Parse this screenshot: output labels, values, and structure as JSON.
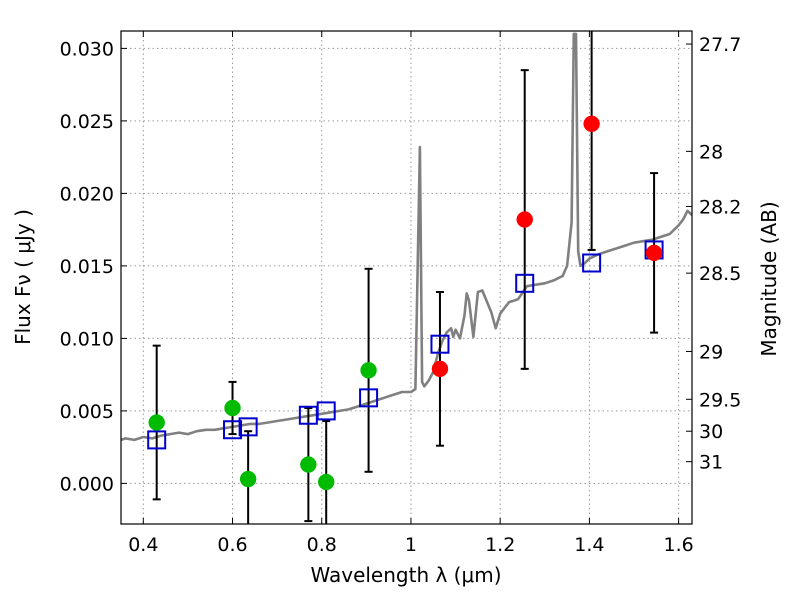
{
  "chart_data": {
    "type": "scatter",
    "xlabel": "Wavelength  λ (μm)",
    "ylabel": "Flux  Fν  ( μJy )",
    "y2label": "Magnitude (AB)",
    "xlim": [
      0.35,
      1.63
    ],
    "ylim": [
      -0.0028,
      0.0312
    ],
    "grid": true,
    "x_ticks": [
      0.4,
      0.6,
      0.8,
      1.0,
      1.2,
      1.4,
      1.6
    ],
    "x_tick_labels": [
      "0.4",
      "0.6",
      "0.8",
      "1",
      "1.2",
      "1.4",
      "1.6"
    ],
    "y_ticks": [
      0.0,
      0.005,
      0.01,
      0.015,
      0.02,
      0.025,
      0.03
    ],
    "y_tick_labels": [
      "0.000",
      "0.005",
      "0.010",
      "0.015",
      "0.020",
      "0.025",
      "0.030"
    ],
    "y2_ticks": [
      {
        "label": "27.7",
        "flux": 0.0303
      },
      {
        "label": "28",
        "flux": 0.0229
      },
      {
        "label": "28.2",
        "flux": 0.0191
      },
      {
        "label": "28.5",
        "flux": 0.0145
      },
      {
        "label": "29",
        "flux": 0.0091
      },
      {
        "label": "29.5",
        "flux": 0.0058
      },
      {
        "label": "30",
        "flux": 0.0036
      },
      {
        "label": "31",
        "flux": 0.0015
      }
    ],
    "colors": {
      "model": "#808080",
      "fit": "#0000cc",
      "detected": "#ff0000",
      "undetected": "#00bb00",
      "errorbar": "#000000",
      "grid": "#999999"
    },
    "model_spectrum": {
      "x": [
        0.35,
        0.36,
        0.38,
        0.4,
        0.42,
        0.44,
        0.46,
        0.48,
        0.5,
        0.52,
        0.54,
        0.56,
        0.58,
        0.6,
        0.62,
        0.64,
        0.66,
        0.68,
        0.7,
        0.72,
        0.74,
        0.76,
        0.78,
        0.8,
        0.82,
        0.84,
        0.86,
        0.88,
        0.9,
        0.92,
        0.94,
        0.96,
        0.98,
        1.0,
        1.01,
        1.02,
        1.025,
        1.03,
        1.04,
        1.05,
        1.06,
        1.07,
        1.08,
        1.09,
        1.095,
        1.1,
        1.11,
        1.12,
        1.125,
        1.13,
        1.14,
        1.15,
        1.16,
        1.18,
        1.19,
        1.2,
        1.21,
        1.22,
        1.23,
        1.24,
        1.26,
        1.28,
        1.3,
        1.32,
        1.34,
        1.35,
        1.36,
        1.365,
        1.37,
        1.375,
        1.38,
        1.39,
        1.4,
        1.42,
        1.44,
        1.46,
        1.48,
        1.5,
        1.52,
        1.54,
        1.56,
        1.58,
        1.6,
        1.61,
        1.62,
        1.63
      ],
      "y": [
        0.003,
        0.0031,
        0.003,
        0.0032,
        0.0031,
        0.0033,
        0.0034,
        0.0035,
        0.0034,
        0.0036,
        0.0037,
        0.0037,
        0.0038,
        0.0039,
        0.004,
        0.0041,
        0.0041,
        0.0042,
        0.0043,
        0.0044,
        0.0045,
        0.0046,
        0.0047,
        0.0048,
        0.0049,
        0.005,
        0.0051,
        0.0053,
        0.0055,
        0.0057,
        0.0059,
        0.0061,
        0.0063,
        0.0063,
        0.0065,
        0.0232,
        0.007,
        0.0067,
        0.0071,
        0.0077,
        0.0089,
        0.0098,
        0.0104,
        0.0107,
        0.0101,
        0.0106,
        0.01,
        0.0116,
        0.0131,
        0.0126,
        0.0101,
        0.0132,
        0.0133,
        0.0118,
        0.0107,
        0.0117,
        0.0121,
        0.0125,
        0.0126,
        0.0127,
        0.0136,
        0.0137,
        0.0138,
        0.014,
        0.0143,
        0.015,
        0.018,
        0.031,
        0.031,
        0.016,
        0.015,
        0.0152,
        0.0155,
        0.0158,
        0.016,
        0.0162,
        0.0164,
        0.0166,
        0.0167,
        0.0168,
        0.017,
        0.0172,
        0.0178,
        0.0182,
        0.0188,
        0.0185
      ]
    },
    "series": [
      {
        "marker": "open-square",
        "color": "#0000cc",
        "x": [
          0.43,
          0.6,
          0.635,
          0.77,
          0.81,
          0.905,
          1.065,
          1.255,
          1.405,
          1.545
        ],
        "y": [
          0.003,
          0.0037,
          0.0039,
          0.0047,
          0.005,
          0.0059,
          0.0096,
          0.0138,
          0.0152,
          0.0161
        ]
      },
      {
        "marker": "filled-circle",
        "color": "#00bb00",
        "x": [
          0.43,
          0.6,
          0.635,
          0.77,
          0.81,
          0.905
        ],
        "y": [
          0.0042,
          0.0052,
          0.0003,
          0.0013,
          0.0001,
          0.0078
        ],
        "err": [
          0.0053,
          0.0018,
          0.0033,
          0.0039,
          0.0042,
          0.007
        ]
      },
      {
        "marker": "filled-circle",
        "color": "#ff0000",
        "x": [
          1.065,
          1.255,
          1.405,
          1.545
        ],
        "y": [
          0.0079,
          0.0182,
          0.0248,
          0.0159
        ],
        "err": [
          0.0053,
          0.0103,
          0.0087,
          0.0055
        ]
      }
    ]
  }
}
